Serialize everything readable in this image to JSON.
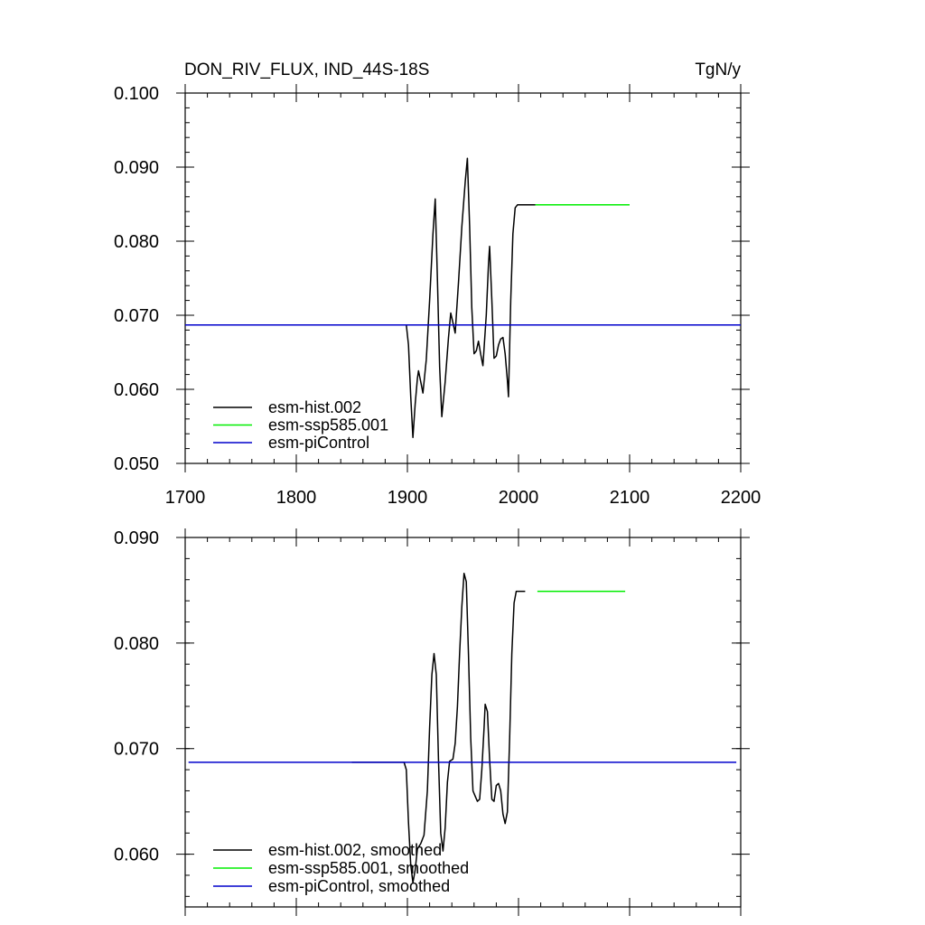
{
  "header": {
    "title": "DON_RIV_FLUX, IND_44S-18S",
    "units": "TgN/y"
  },
  "colors": {
    "esm-hist.002": "#000000",
    "esm-ssp585.001": "#00ee00",
    "esm-piControl": "#0000cc"
  },
  "chart_data": [
    {
      "type": "line",
      "title": "DON_RIV_FLUX, IND_44S-18S",
      "xlim": [
        1700,
        2200
      ],
      "ylim": [
        0.05,
        0.1
      ],
      "xticks": [
        1700,
        1800,
        1900,
        2000,
        2100,
        2200
      ],
      "xtick_labels": [
        "1700",
        "1800",
        "1900",
        "2000",
        "2100",
        "2200"
      ],
      "yticks": [
        0.05,
        0.06,
        0.07,
        0.08,
        0.09,
        0.1
      ],
      "ytick_labels": [
        "0.050",
        "0.060",
        "0.070",
        "0.080",
        "0.090",
        "0.100"
      ],
      "legend_position": "bottom-left",
      "grid": false,
      "series": [
        {
          "name": "esm-hist.002",
          "color": "#000000",
          "points": [
            [
              1850,
              0.0687
            ],
            [
              1899,
              0.0687
            ],
            [
              1901,
              0.066
            ],
            [
              1903,
              0.059
            ],
            [
              1905,
              0.0535
            ],
            [
              1907,
              0.058
            ],
            [
              1909,
              0.0615
            ],
            [
              1910,
              0.0625
            ],
            [
              1912,
              0.061
            ],
            [
              1914,
              0.0595
            ],
            [
              1917,
              0.064
            ],
            [
              1920,
              0.072
            ],
            [
              1923,
              0.081
            ],
            [
              1925,
              0.0857
            ],
            [
              1927,
              0.075
            ],
            [
              1929,
              0.063
            ],
            [
              1931,
              0.0563
            ],
            [
              1934,
              0.061
            ],
            [
              1937,
              0.067
            ],
            [
              1939,
              0.0703
            ],
            [
              1941,
              0.069
            ],
            [
              1943,
              0.0676
            ],
            [
              1946,
              0.0745
            ],
            [
              1949,
              0.082
            ],
            [
              1952,
              0.088
            ],
            [
              1954,
              0.0912
            ],
            [
              1956,
              0.082
            ],
            [
              1958,
              0.071
            ],
            [
              1960,
              0.0648
            ],
            [
              1962,
              0.0652
            ],
            [
              1964,
              0.0665
            ],
            [
              1966,
              0.0647
            ],
            [
              1968,
              0.0632
            ],
            [
              1971,
              0.07
            ],
            [
              1973,
              0.077
            ],
            [
              1974,
              0.0793
            ],
            [
              1976,
              0.072
            ],
            [
              1978,
              0.0642
            ],
            [
              1980,
              0.0645
            ],
            [
              1982,
              0.066
            ],
            [
              1984,
              0.0668
            ],
            [
              1986,
              0.067
            ],
            [
              1988,
              0.0648
            ],
            [
              1990,
              0.0612
            ],
            [
              1991,
              0.059
            ],
            [
              1993,
              0.072
            ],
            [
              1995,
              0.081
            ],
            [
              1997,
              0.0845
            ],
            [
              1999,
              0.0849
            ],
            [
              2015,
              0.0849
            ]
          ]
        },
        {
          "name": "esm-ssp585.001",
          "color": "#00ee00",
          "points": [
            [
              2015,
              0.0849
            ],
            [
              2100,
              0.0849
            ]
          ]
        },
        {
          "name": "esm-piControl",
          "color": "#0000cc",
          "points": [
            [
              1700,
              0.0687
            ],
            [
              2200,
              0.0687
            ]
          ]
        }
      ]
    },
    {
      "type": "line",
      "title": "",
      "xlim": [
        1700,
        2200
      ],
      "ylim": [
        0.055,
        0.09
      ],
      "xticks": [
        1700,
        1800,
        1900,
        2000,
        2100,
        2200
      ],
      "xtick_labels": [],
      "yticks": [
        0.06,
        0.07,
        0.08,
        0.09
      ],
      "ytick_labels": [
        "0.060",
        "0.070",
        "0.080",
        "0.090"
      ],
      "legend_position": "bottom-left",
      "grid": false,
      "series": [
        {
          "name": "esm-hist.002, smoothed",
          "color": "#000000",
          "points": [
            [
              1850,
              0.0687
            ],
            [
              1897,
              0.0687
            ],
            [
              1899,
              0.068
            ],
            [
              1901,
              0.063
            ],
            [
              1903,
              0.059
            ],
            [
              1905,
              0.0573
            ],
            [
              1907,
              0.0585
            ],
            [
              1909,
              0.0605
            ],
            [
              1912,
              0.061
            ],
            [
              1915,
              0.0618
            ],
            [
              1918,
              0.066
            ],
            [
              1920,
              0.072
            ],
            [
              1922,
              0.077
            ],
            [
              1924,
              0.079
            ],
            [
              1926,
              0.077
            ],
            [
              1928,
              0.069
            ],
            [
              1930,
              0.062
            ],
            [
              1932,
              0.0603
            ],
            [
              1934,
              0.0625
            ],
            [
              1936,
              0.0668
            ],
            [
              1938,
              0.0688
            ],
            [
              1941,
              0.069
            ],
            [
              1943,
              0.0705
            ],
            [
              1945,
              0.074
            ],
            [
              1947,
              0.079
            ],
            [
              1949,
              0.0835
            ],
            [
              1951,
              0.0866
            ],
            [
              1953,
              0.0858
            ],
            [
              1955,
              0.079
            ],
            [
              1957,
              0.071
            ],
            [
              1959,
              0.066
            ],
            [
              1961,
              0.0655
            ],
            [
              1963,
              0.065
            ],
            [
              1965,
              0.0652
            ],
            [
              1967,
              0.068
            ],
            [
              1969,
              0.072
            ],
            [
              1970,
              0.0742
            ],
            [
              1972,
              0.0735
            ],
            [
              1974,
              0.069
            ],
            [
              1976,
              0.0652
            ],
            [
              1978,
              0.065
            ],
            [
              1980,
              0.0665
            ],
            [
              1982,
              0.0667
            ],
            [
              1984,
              0.066
            ],
            [
              1986,
              0.0638
            ],
            [
              1988,
              0.0629
            ],
            [
              1990,
              0.064
            ],
            [
              1992,
              0.071
            ],
            [
              1994,
              0.079
            ],
            [
              1996,
              0.0838
            ],
            [
              1998,
              0.0849
            ],
            [
              2006,
              0.0849
            ]
          ]
        },
        {
          "name": "esm-ssp585.001, smoothed",
          "color": "#00ee00",
          "points": [
            [
              2017,
              0.0849
            ],
            [
              2096,
              0.0849
            ]
          ]
        },
        {
          "name": "esm-piControl, smoothed",
          "color": "#0000cc",
          "points": [
            [
              1703,
              0.0687
            ],
            [
              2196,
              0.0687
            ]
          ]
        }
      ]
    }
  ]
}
